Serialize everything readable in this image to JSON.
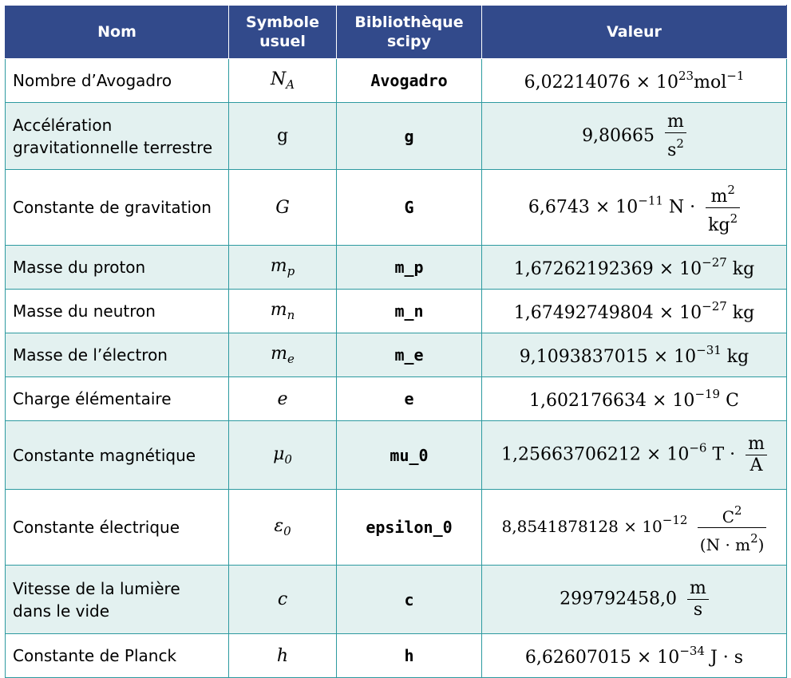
{
  "headers": {
    "name": "Nom",
    "symbol": "Symbole usuel",
    "library": "Bibliothèque scipy",
    "value": "Valeur"
  },
  "rows": [
    {
      "name": "Nombre d’Avogadro",
      "symbol": "N",
      "symbol_sub": "A",
      "library": "Avogadro",
      "value": "6,02214076 × 10",
      "value_exp": "23",
      "unit": "mol",
      "unit_exp": "−1"
    },
    {
      "name": "Accélération gravitationnelle terrestre",
      "symbol": "g",
      "library": "g",
      "value": "9,80665",
      "unit_num": "m",
      "unit_den": "s",
      "unit_den_exp": "2"
    },
    {
      "name": "Constante de gravitation",
      "symbol": "G",
      "library": "G",
      "value": "6,6743 × 10",
      "value_exp": "−11",
      "unit_prefix": "N ·",
      "unit_num": "m",
      "unit_num_exp": "2",
      "unit_den": "kg",
      "unit_den_exp": "2"
    },
    {
      "name": "Masse du proton",
      "symbol": "m",
      "symbol_sub": "p",
      "library": "m_p",
      "value": "1,67262192369 × 10",
      "value_exp": "−27",
      "unit": "kg"
    },
    {
      "name": "Masse du neutron",
      "symbol": "m",
      "symbol_sub": "n",
      "library": "m_n",
      "value": "1,67492749804 × 10",
      "value_exp": "−27",
      "unit": "kg"
    },
    {
      "name": "Masse de l’électron",
      "symbol": "m",
      "symbol_sub": "e",
      "library": "m_e",
      "value": "9,1093837015 × 10",
      "value_exp": "−31",
      "unit": "kg"
    },
    {
      "name": "Charge élémentaire",
      "symbol": "e",
      "library": "e",
      "value": "1,602176634 × 10",
      "value_exp": "−19",
      "unit": "C"
    },
    {
      "name": "Constante magnétique",
      "symbol": "μ",
      "symbol_sub": "0",
      "library": "mu_0",
      "value": "1,25663706212 × 10",
      "value_exp": "−6",
      "unit_prefix": "T ·",
      "unit_num": "m",
      "unit_den": "A"
    },
    {
      "name": "Constante électrique",
      "symbol": "ε",
      "symbol_sub": "0",
      "library": "epsilon_0",
      "value": "8,8541878128 × 10",
      "value_exp": "−12",
      "unit_num": "C",
      "unit_num_exp": "2",
      "unit_den": "(N · m",
      "unit_den_exp": "2",
      "unit_den_close": ")"
    },
    {
      "name": "Vitesse de la lumière dans le vide",
      "symbol": "c",
      "library": "c",
      "value": "299792458,0",
      "unit_num": "m",
      "unit_den": "s"
    },
    {
      "name": "Constante de Planck",
      "symbol": "h",
      "library": "h",
      "value": "6,62607015 × 10",
      "value_exp": "−34",
      "unit": "J · s"
    }
  ]
}
